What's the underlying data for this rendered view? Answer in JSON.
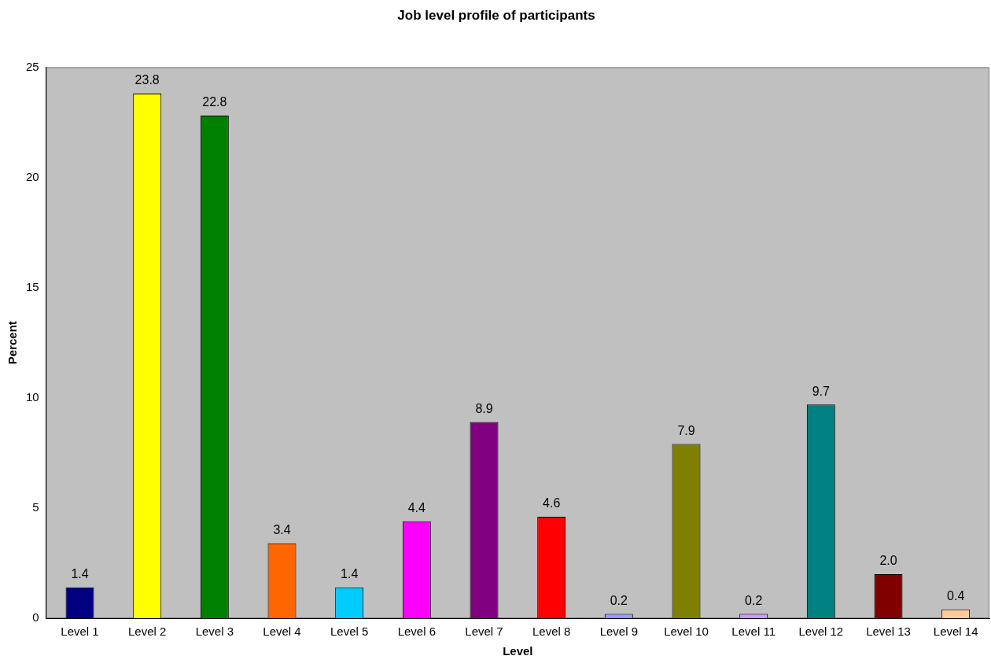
{
  "chart_data": {
    "type": "bar",
    "title": "Job level profile of participants",
    "xlabel": "Level",
    "ylabel": "Percent",
    "categories": [
      "Level 1",
      "Level 2",
      "Level 3",
      "Level 4",
      "Level 5",
      "Level 6",
      "Level 7",
      "Level 8",
      "Level 9",
      "Level 10",
      "Level 11",
      "Level 12",
      "Level 13",
      "Level 14"
    ],
    "values": [
      1.4,
      23.8,
      22.8,
      3.4,
      1.4,
      4.4,
      8.9,
      4.6,
      0.2,
      7.9,
      0.2,
      9.7,
      2.0,
      0.4
    ],
    "value_labels": [
      "1.4",
      "23.8",
      "22.8",
      "3.4",
      "1.4",
      "4.4",
      "8.9",
      "4.6",
      "0.2",
      "7.9",
      "0.2",
      "9.7",
      "2.0",
      "0.4"
    ],
    "colors": [
      "#000080",
      "#ffff00",
      "#008000",
      "#ff6600",
      "#00ccff",
      "#ff00ff",
      "#800080",
      "#ff0000",
      "#9999ff",
      "#808000",
      "#cc99ff",
      "#008080",
      "#800000",
      "#ffcc99"
    ],
    "ylim": [
      0,
      25
    ],
    "yticks": [
      0,
      5,
      10,
      15,
      20,
      25
    ],
    "grid": false,
    "legend": false
  }
}
